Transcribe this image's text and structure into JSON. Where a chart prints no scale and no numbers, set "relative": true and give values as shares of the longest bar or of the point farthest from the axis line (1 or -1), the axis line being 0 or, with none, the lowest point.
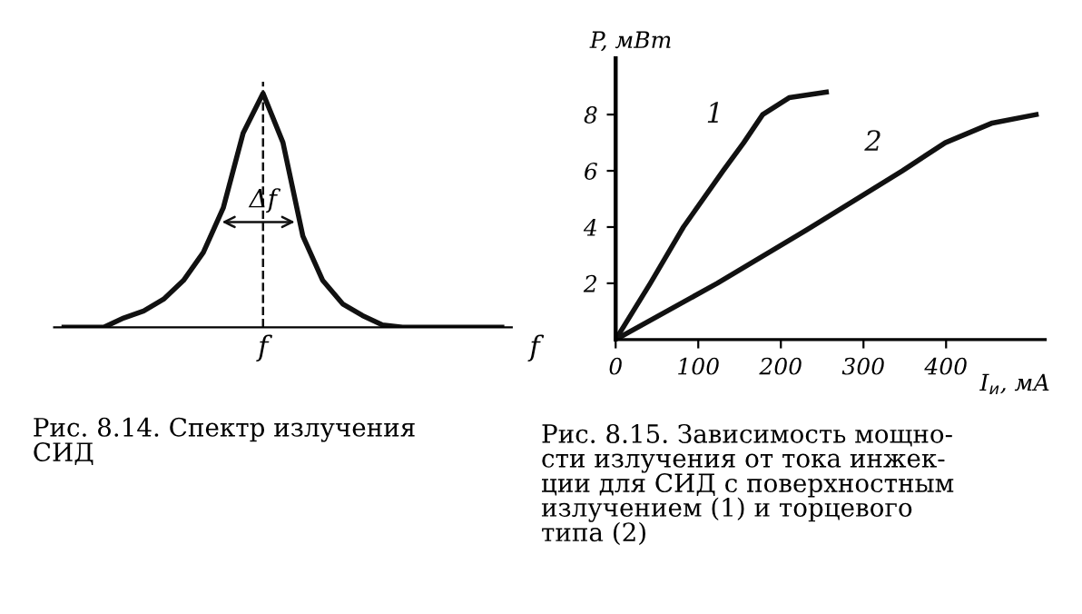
{
  "chart_data": [
    {
      "type": "line",
      "relative": true,
      "xlabel": "f",
      "categories": [
        null,
        null,
        null,
        null,
        null,
        null,
        null,
        null,
        null,
        null,
        null,
        null,
        null,
        null,
        null,
        null,
        null,
        null,
        null,
        null,
        null,
        null,
        null
      ],
      "series": [
        {
          "color": "#111111",
          "values": [
            0,
            0,
            0,
            0.04,
            0.07,
            0.12,
            0.2,
            0.32,
            0.51,
            0.83,
            1,
            0.79,
            0.39,
            0.2,
            0.1,
            0.05,
            0.01,
            0,
            0,
            0,
            0,
            0,
            0
          ]
        }
      ],
      "annotations": [
        "Δf",
        "f",
        "Рис. 8.14. Спектр излучения\nСИД"
      ],
      "marker": "none",
      "line_style": "solid",
      "grid": false,
      "legend": false
    },
    {
      "type": "line",
      "xlabel": "I$_{и}$, мА",
      "ylabel": "P, мВт",
      "xlim": [
        0,
        520
      ],
      "ylim": [
        0,
        10
      ],
      "xticks": [
        0,
        100,
        200,
        300,
        400
      ],
      "yticks": [
        2,
        4,
        6,
        8
      ],
      "series": [
        {
          "name": "1",
          "color": "#111111",
          "x": [
            0,
            42,
            82,
            130,
            155,
            178,
            210,
            255
          ],
          "values": [
            0,
            2,
            4,
            6,
            7,
            8,
            8.6,
            8.8
          ]
        },
        {
          "name": "2",
          "color": "#111111",
          "x": [
            0,
            123,
            237,
            347,
            399,
            456,
            509
          ],
          "values": [
            0,
            2,
            4,
            6,
            7,
            7.7,
            8
          ]
        }
      ],
      "annotations": [
        "Рис. 8.15. Зависимость мощно-\nсти излучения от тока инжек-\nции для СИД с поверхностным\nизлучением (1) и торцевого\nтипа (2)"
      ],
      "marker": "none",
      "line_style": "solid",
      "grid": false,
      "legend": false
    }
  ]
}
